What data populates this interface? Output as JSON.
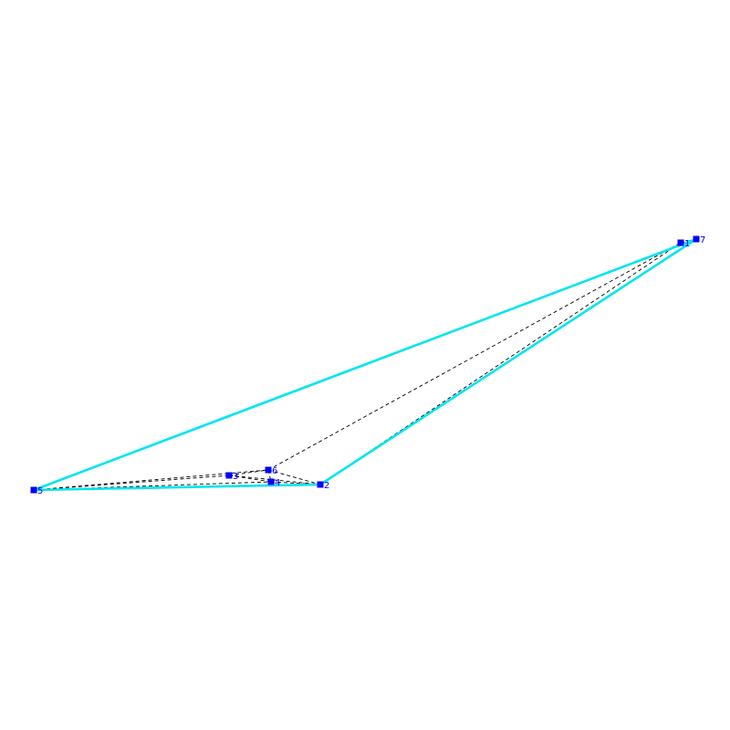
{
  "colors": {
    "background": "#ffffff",
    "hull_edge": "#00e5ee",
    "inner_edge": "#000000",
    "vertex": "#0000ff",
    "label": "#0000ff"
  },
  "vertices": [
    {
      "id": "1",
      "label": "1"
    },
    {
      "id": "2",
      "label": "2"
    },
    {
      "id": "3",
      "label": "3"
    },
    {
      "id": "4",
      "label": "4"
    },
    {
      "id": "5",
      "label": "5"
    },
    {
      "id": "6",
      "label": "6"
    },
    {
      "id": "7",
      "label": "7"
    }
  ],
  "hull_edges": [
    [
      "5",
      "7"
    ],
    [
      "7",
      "2"
    ],
    [
      "2",
      "5"
    ]
  ],
  "inner_edges": [
    [
      "5",
      "3"
    ],
    [
      "5",
      "4"
    ],
    [
      "5",
      "6"
    ],
    [
      "3",
      "6"
    ],
    [
      "3",
      "4"
    ],
    [
      "3",
      "2"
    ],
    [
      "6",
      "4"
    ],
    [
      "4",
      "2"
    ],
    [
      "6",
      "2"
    ],
    [
      "6",
      "1"
    ],
    [
      "2",
      "1"
    ],
    [
      "1",
      "7"
    ]
  ]
}
